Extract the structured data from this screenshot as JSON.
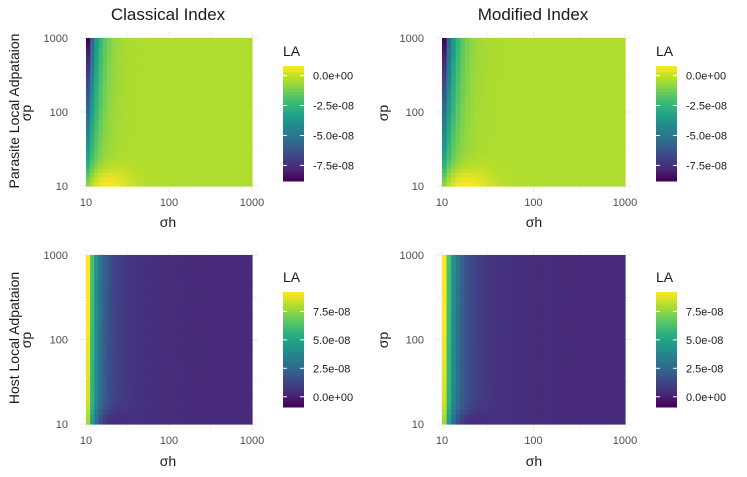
{
  "columns": [
    "Classical Index",
    "Modified Index"
  ],
  "rows": [
    "Parasite Local Adpataion",
    "Host Local Adpataion"
  ],
  "colors": {
    "viridis": [
      "#440154",
      "#482878",
      "#3e4989",
      "#31688e",
      "#26828e",
      "#1f9e89",
      "#35b779",
      "#6ece58",
      "#b5de2b",
      "#fde725"
    ],
    "grid": "#ebebeb",
    "text": "#4d4d4d"
  },
  "chart_data": [
    {
      "type": "heatmap",
      "panel": "top-left",
      "xlabel": "σh",
      "ylabel": "σp",
      "x_scale": "log",
      "y_scale": "log",
      "xlim": [
        10,
        1000
      ],
      "ylim": [
        10,
        1000
      ],
      "x_ticks": [
        "10",
        "100",
        "1000"
      ],
      "y_ticks": [
        "10",
        "100",
        "1000"
      ],
      "legend_title": "LA",
      "legend_range": [
        -8.8e-08,
        8e-09
      ],
      "legend_ticks": [
        {
          "value": 0.0,
          "label": "0.0e+00"
        },
        {
          "value": -2.5e-08,
          "label": "-2.5e-08"
        },
        {
          "value": -5e-08,
          "label": "-5.0e-08"
        },
        {
          "value": -7.5e-08,
          "label": "-7.5e-08"
        }
      ],
      "field_shape": "parasite"
    },
    {
      "type": "heatmap",
      "panel": "top-right",
      "xlabel": "σh",
      "ylabel": "σp",
      "x_scale": "log",
      "y_scale": "log",
      "xlim": [
        10,
        1000
      ],
      "ylim": [
        10,
        1000
      ],
      "x_ticks": [
        "10",
        "100",
        "1000"
      ],
      "y_ticks": [
        "10",
        "100",
        "1000"
      ],
      "legend_title": "LA",
      "legend_range": [
        -8.8e-08,
        8e-09
      ],
      "legend_ticks": [
        {
          "value": 0.0,
          "label": "0.0e+00"
        },
        {
          "value": -2.5e-08,
          "label": "-2.5e-08"
        },
        {
          "value": -5e-08,
          "label": "-5.0e-08"
        },
        {
          "value": -7.5e-08,
          "label": "-7.5e-08"
        }
      ],
      "field_shape": "parasite"
    },
    {
      "type": "heatmap",
      "panel": "bottom-left",
      "xlabel": "σh",
      "ylabel": "σp",
      "x_scale": "log",
      "y_scale": "log",
      "xlim": [
        10,
        1000
      ],
      "ylim": [
        10,
        1000
      ],
      "x_ticks": [
        "10",
        "100",
        "1000"
      ],
      "y_ticks": [
        "10",
        "100",
        "1000"
      ],
      "legend_title": "LA",
      "legend_range": [
        -9e-09,
        9.2e-08
      ],
      "legend_ticks": [
        {
          "value": 7.5e-08,
          "label": "7.5e-08"
        },
        {
          "value": 5e-08,
          "label": "5.0e-08"
        },
        {
          "value": 2.5e-08,
          "label": "2.5e-08"
        },
        {
          "value": 0.0,
          "label": "0.0e+00"
        }
      ],
      "field_shape": "host"
    },
    {
      "type": "heatmap",
      "panel": "bottom-right",
      "xlabel": "σh",
      "ylabel": "σp",
      "x_scale": "log",
      "y_scale": "log",
      "xlim": [
        10,
        1000
      ],
      "ylim": [
        10,
        1000
      ],
      "x_ticks": [
        "10",
        "100",
        "1000"
      ],
      "y_ticks": [
        "10",
        "100",
        "1000"
      ],
      "legend_title": "LA",
      "legend_range": [
        -9e-09,
        9.2e-08
      ],
      "legend_ticks": [
        {
          "value": 7.5e-08,
          "label": "7.5e-08"
        },
        {
          "value": 5e-08,
          "label": "5.0e-08"
        },
        {
          "value": 2.5e-08,
          "label": "2.5e-08"
        },
        {
          "value": 0.0,
          "label": "0.0e+00"
        }
      ],
      "field_shape": "host"
    }
  ]
}
